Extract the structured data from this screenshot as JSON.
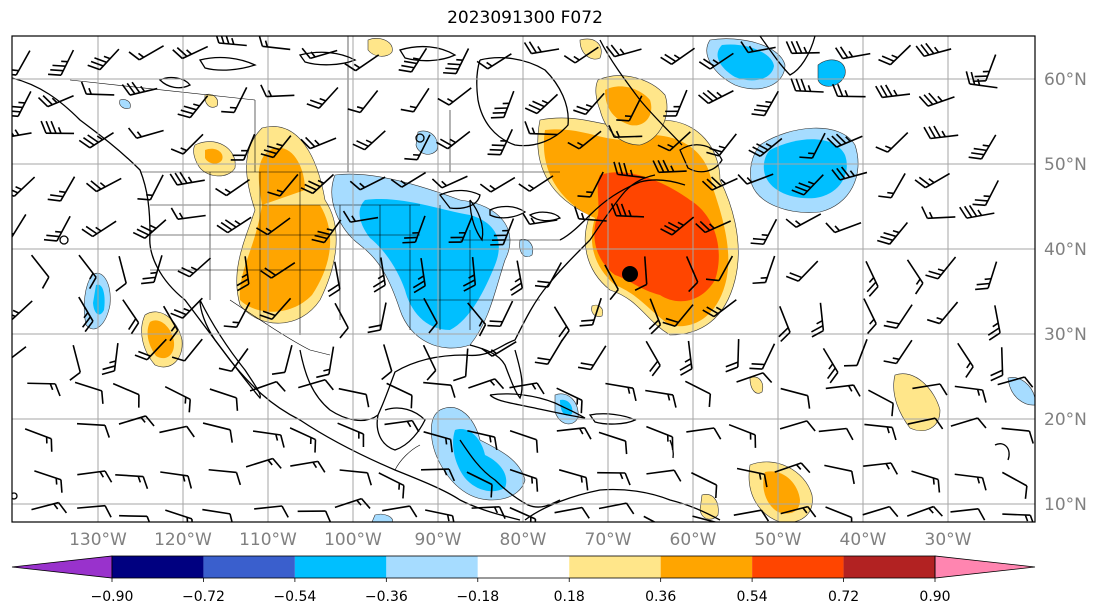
{
  "title": "2023091300 F072",
  "map": {
    "lat_labels": [
      "60°N",
      "50°N",
      "40°N",
      "30°N",
      "20°N",
      "10°N"
    ],
    "lon_labels": [
      "130°W",
      "120°W",
      "110°W",
      "100°W",
      "90°W",
      "80°W",
      "70°W",
      "60°W",
      "50°W",
      "40°W",
      "30°W"
    ],
    "storm_marker": "storm-center"
  },
  "colorbar": {
    "levels": [
      "−0.90",
      "−0.72",
      "−0.54",
      "−0.36",
      "−0.18",
      "0.18",
      "0.36",
      "0.54",
      "0.72",
      "0.90"
    ],
    "colors": [
      "#9932cc",
      "#000080",
      "#3a5fcd",
      "#00bfff",
      "#a6dcff",
      "#ffffff",
      "#ffe68a",
      "#ffa500",
      "#ff4500",
      "#b22222",
      "#ff85b0"
    ]
  }
}
